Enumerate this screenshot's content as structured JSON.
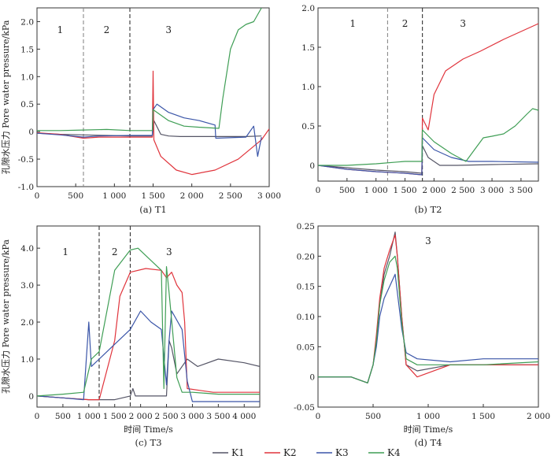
{
  "figure": {
    "ylabel": "孔隙水压力 Pore water pressure/kPa",
    "xlabel": "时间 Time/s",
    "legend": [
      {
        "name": "K1",
        "color": "#555566"
      },
      {
        "name": "K2",
        "color": "#e0343c"
      },
      {
        "name": "K3",
        "color": "#3a55a8"
      },
      {
        "name": "K4",
        "color": "#3f9e55"
      }
    ]
  },
  "chart_data": [
    {
      "type": "line",
      "title": "(a) T1",
      "xlim": [
        0,
        3000
      ],
      "ylim": [
        -1.0,
        2.25
      ],
      "xticks": [
        0,
        500,
        1000,
        1500,
        2000,
        2500,
        3000
      ],
      "xtick_labels": [
        "0",
        "500",
        "1 000",
        "1 500",
        "2 000",
        "2 500",
        "3 000"
      ],
      "yticks": [
        -1.0,
        -0.5,
        0,
        0.5,
        1.0,
        1.5,
        2.0
      ],
      "ytick_labels": [
        "-1.0",
        "-0.5",
        "0",
        "0.5",
        "1.0",
        "1.5",
        "2.0"
      ],
      "has_ylabel": true,
      "has_xlabel": false,
      "vlines": [
        {
          "x": 600,
          "style": "light"
        },
        {
          "x": 1200,
          "style": "dark"
        }
      ],
      "regions": [
        {
          "label": "1",
          "x": 300,
          "y": 1.85
        },
        {
          "label": "2",
          "x": 900,
          "y": 1.85
        },
        {
          "label": "3",
          "x": 1700,
          "y": 1.85
        }
      ],
      "series": [
        {
          "name": "K1",
          "x": [
            0,
            300,
            600,
            900,
            1200,
            1490,
            1510,
            1600,
            1700,
            1850,
            2100,
            2400,
            2700,
            2900
          ],
          "y": [
            -0.03,
            -0.05,
            -0.06,
            -0.07,
            -0.08,
            -0.08,
            0.2,
            -0.05,
            -0.08,
            -0.09,
            -0.09,
            -0.09,
            -0.09,
            -0.08
          ]
        },
        {
          "name": "K2",
          "x": [
            0,
            300,
            600,
            800,
            1200,
            1490,
            1500,
            1510,
            1600,
            1800,
            2000,
            2300,
            2600,
            2900,
            3000
          ],
          "y": [
            -0.02,
            -0.05,
            -0.12,
            -0.1,
            -0.1,
            -0.1,
            1.1,
            -0.15,
            -0.45,
            -0.7,
            -0.78,
            -0.7,
            -0.5,
            -0.15,
            0.05
          ]
        },
        {
          "name": "K3",
          "x": [
            0,
            300,
            600,
            800,
            1200,
            1490,
            1500,
            1550,
            1700,
            1900,
            2100,
            2300,
            2310,
            2700,
            2800,
            2850,
            2900
          ],
          "y": [
            -0.03,
            -0.06,
            -0.1,
            -0.08,
            -0.07,
            -0.07,
            0.4,
            0.5,
            0.35,
            0.25,
            0.2,
            0.12,
            -0.12,
            -0.1,
            0.1,
            -0.45,
            -0.1
          ]
        },
        {
          "name": "K4",
          "x": [
            0,
            300,
            600,
            900,
            1200,
            1490,
            1500,
            1700,
            1900,
            2100,
            2350,
            2400,
            2500,
            2600,
            2700,
            2800,
            2900
          ],
          "y": [
            0.02,
            0.02,
            0.03,
            0.04,
            0.02,
            0.02,
            0.4,
            0.2,
            0.1,
            0.08,
            0.06,
            0.6,
            1.5,
            1.85,
            1.95,
            2.0,
            2.25
          ]
        }
      ]
    },
    {
      "type": "line",
      "title": "(b) T2",
      "xlim": [
        0,
        3800
      ],
      "ylim": [
        -0.2,
        2.0
      ],
      "xticks": [
        0,
        500,
        1000,
        1500,
        2000,
        2500,
        3000,
        3500
      ],
      "xtick_labels": [
        "0",
        "500",
        "1 000",
        "1 500",
        "2 000",
        "2 500",
        "3 000",
        "3 500"
      ],
      "yticks": [
        0,
        0.5,
        1.0,
        1.5,
        2.0
      ],
      "ytick_labels": [
        "0",
        "0.5",
        "1.0",
        "1.5",
        "2.0"
      ],
      "has_ylabel": false,
      "has_xlabel": false,
      "vlines": [
        {
          "x": 1200,
          "style": "light"
        },
        {
          "x": 1800,
          "style": "dark"
        }
      ],
      "regions": [
        {
          "label": "1",
          "x": 600,
          "y": 1.8
        },
        {
          "label": "2",
          "x": 1500,
          "y": 1.8
        },
        {
          "label": "3",
          "x": 2500,
          "y": 1.8
        }
      ],
      "series": [
        {
          "name": "K1",
          "x": [
            0,
            500,
            1000,
            1500,
            1790,
            1800,
            1900,
            2100,
            2400,
            3000,
            3800
          ],
          "y": [
            0.0,
            -0.03,
            -0.06,
            -0.08,
            -0.1,
            0.25,
            0.1,
            0.0,
            0.0,
            0.01,
            0.02
          ]
        },
        {
          "name": "K2",
          "x": [
            0,
            500,
            1000,
            1500,
            1790,
            1800,
            1900,
            2000,
            2200,
            2500,
            2800,
            3200,
            3500,
            3800
          ],
          "y": [
            0.0,
            -0.05,
            -0.08,
            -0.1,
            -0.12,
            0.6,
            0.45,
            0.9,
            1.2,
            1.35,
            1.45,
            1.6,
            1.7,
            1.8
          ]
        },
        {
          "name": "K3",
          "x": [
            0,
            500,
            1000,
            1500,
            1790,
            1800,
            2000,
            2300,
            2600,
            3000,
            3800
          ],
          "y": [
            0.0,
            -0.05,
            -0.08,
            -0.1,
            -0.12,
            0.35,
            0.2,
            0.1,
            0.05,
            0.05,
            0.04
          ]
        },
        {
          "name": "K4",
          "x": [
            0,
            500,
            1000,
            1500,
            1790,
            1800,
            2000,
            2300,
            2550,
            2700,
            2850,
            3000,
            3200,
            3400,
            3600,
            3700,
            3800
          ],
          "y": [
            0.0,
            0.0,
            0.02,
            0.05,
            0.05,
            0.45,
            0.3,
            0.15,
            0.05,
            0.2,
            0.35,
            0.37,
            0.4,
            0.5,
            0.65,
            0.72,
            0.7
          ]
        }
      ]
    },
    {
      "type": "line",
      "title": "(c) T3",
      "xlim": [
        0,
        4300
      ],
      "ylim": [
        -0.3,
        4.6
      ],
      "xticks": [
        0,
        500,
        1000,
        1500,
        2000,
        2500,
        3000,
        3500,
        4000
      ],
      "xtick_labels": [
        "0",
        "500",
        "1 000",
        "1 500",
        "2 000",
        "2 500",
        "3 000",
        "3 500",
        "4 000"
      ],
      "yticks": [
        0,
        1.0,
        2.0,
        3.0,
        4.0
      ],
      "ytick_labels": [
        "0",
        "1.0",
        "2.0",
        "3.0",
        "4.0"
      ],
      "has_ylabel": true,
      "has_xlabel": true,
      "vlines": [
        {
          "x": 1200,
          "style": "dark"
        },
        {
          "x": 1800,
          "style": "dark"
        }
      ],
      "regions": [
        {
          "label": "1",
          "x": 550,
          "y": 3.9
        },
        {
          "label": "2",
          "x": 1500,
          "y": 3.9
        },
        {
          "label": "3",
          "x": 2550,
          "y": 3.9
        }
      ],
      "series": [
        {
          "name": "K1",
          "x": [
            0,
            500,
            1000,
            1500,
            1800,
            1850,
            1900,
            2500,
            2550,
            2600,
            2700,
            2900,
            3100,
            3500,
            4000,
            4300
          ],
          "y": [
            0.0,
            -0.05,
            -0.1,
            -0.1,
            0.0,
            0.2,
            0.0,
            0.0,
            1.5,
            1.3,
            0.6,
            1.0,
            0.8,
            1.0,
            0.9,
            0.8
          ]
        },
        {
          "name": "K2",
          "x": [
            0,
            500,
            1000,
            1200,
            1500,
            1600,
            1800,
            2100,
            2400,
            2500,
            2600,
            2700,
            2800,
            2850,
            2900,
            3400,
            3500,
            4300
          ],
          "y": [
            0.0,
            -0.05,
            -0.1,
            -0.1,
            1.5,
            2.7,
            3.35,
            3.45,
            3.4,
            3.2,
            3.35,
            3.0,
            2.8,
            2.0,
            0.2,
            0.1,
            0.1,
            0.1
          ]
        },
        {
          "name": "K3",
          "x": [
            0,
            500,
            900,
            1000,
            1050,
            1200,
            1500,
            1800,
            2000,
            2200,
            2400,
            2500,
            2550,
            2600,
            2800,
            2900,
            3000,
            3500,
            4300
          ],
          "y": [
            0.0,
            -0.05,
            -0.1,
            2.0,
            0.8,
            1.0,
            1.4,
            1.8,
            2.3,
            2.0,
            1.8,
            0.3,
            1.5,
            2.3,
            1.8,
            0.4,
            -0.15,
            -0.15,
            -0.15
          ]
        },
        {
          "name": "K4",
          "x": [
            0,
            500,
            900,
            1050,
            1200,
            1500,
            1800,
            1950,
            2100,
            2400,
            2450,
            2500,
            2550,
            2700,
            2800,
            3000,
            3500,
            4300
          ],
          "y": [
            0.0,
            0.05,
            0.1,
            1.0,
            1.2,
            3.4,
            3.95,
            4.0,
            3.8,
            3.4,
            0.2,
            3.5,
            2.8,
            0.5,
            0.1,
            0.1,
            0.05,
            0.05
          ]
        }
      ]
    },
    {
      "type": "line",
      "title": "(d) T4",
      "xlim": [
        0,
        2000
      ],
      "ylim": [
        -0.05,
        0.25
      ],
      "xticks": [
        0,
        500,
        1000,
        1500,
        2000
      ],
      "xtick_labels": [
        "0",
        "500",
        "1 000",
        "1 500",
        "2 000"
      ],
      "yticks": [
        -0.05,
        0,
        0.05,
        0.1,
        0.15,
        0.2,
        0.25
      ],
      "ytick_labels": [
        "-0.05",
        "0",
        "0.05",
        "0.10",
        "0.15",
        "0.20",
        "0.25"
      ],
      "has_ylabel": false,
      "has_xlabel": true,
      "vlines": [],
      "regions": [
        {
          "label": "3",
          "x": 1000,
          "y": 0.225
        }
      ],
      "series": [
        {
          "name": "K1",
          "x": [
            0,
            300,
            450,
            500,
            530,
            560,
            600,
            650,
            700,
            720,
            760,
            800,
            900,
            1200,
            1500,
            2000
          ],
          "y": [
            0.0,
            0.0,
            -0.01,
            0.02,
            0.06,
            0.12,
            0.17,
            0.2,
            0.24,
            0.2,
            0.1,
            0.02,
            0.01,
            0.02,
            0.02,
            0.02
          ]
        },
        {
          "name": "K2",
          "x": [
            0,
            300,
            450,
            500,
            530,
            560,
            600,
            650,
            700,
            720,
            760,
            800,
            900,
            1200,
            1500,
            2000
          ],
          "y": [
            0.0,
            0.0,
            -0.01,
            0.02,
            0.07,
            0.13,
            0.18,
            0.21,
            0.235,
            0.2,
            0.1,
            0.02,
            0.0,
            0.02,
            0.02,
            0.02
          ]
        },
        {
          "name": "K3",
          "x": [
            0,
            300,
            450,
            500,
            530,
            560,
            600,
            650,
            700,
            720,
            760,
            800,
            900,
            1200,
            1500,
            2000
          ],
          "y": [
            0.0,
            0.0,
            -0.01,
            0.02,
            0.05,
            0.1,
            0.13,
            0.15,
            0.17,
            0.14,
            0.08,
            0.04,
            0.03,
            0.025,
            0.03,
            0.03
          ]
        },
        {
          "name": "K4",
          "x": [
            0,
            300,
            450,
            500,
            530,
            560,
            600,
            650,
            700,
            720,
            760,
            800,
            900,
            1200,
            1500,
            2000
          ],
          "y": [
            0.0,
            0.0,
            -0.01,
            0.02,
            0.06,
            0.12,
            0.16,
            0.19,
            0.2,
            0.18,
            0.09,
            0.03,
            0.02,
            0.02,
            0.02,
            0.025
          ]
        }
      ]
    }
  ]
}
